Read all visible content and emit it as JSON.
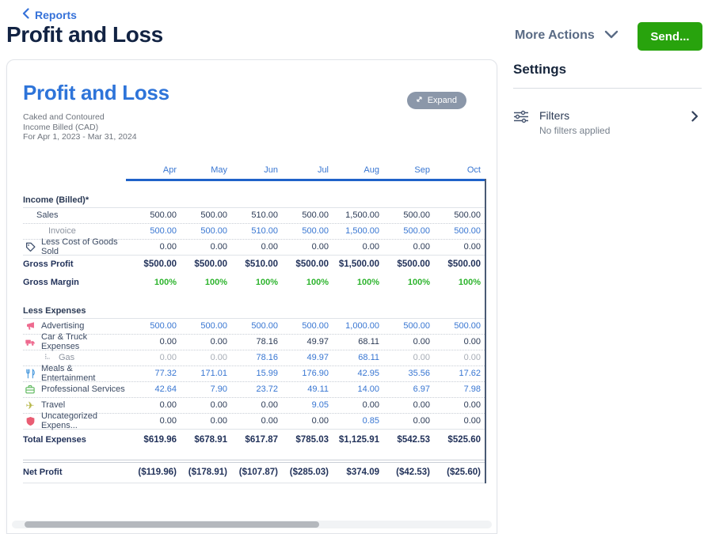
{
  "colors": {
    "brand_blue": "#2e74d9",
    "link_blue": "#3876d2",
    "send_green": "#28a30d",
    "success_green": "#2eb42e",
    "navy_text": "#122343"
  },
  "header": {
    "breadcrumb": "Reports",
    "title": "Profit and Loss",
    "more_actions_label": "More Actions",
    "send_label": "Send..."
  },
  "report_card": {
    "title": "Profit and Loss",
    "company": "Caked and Contoured",
    "basis": "Income Billed (CAD)",
    "period": "For Apr 1, 2023 - Mar 31, 2024",
    "expand_label": "Expand"
  },
  "settings_panel": {
    "title": "Settings",
    "filters_label": "Filters",
    "filters_status": "No filters applied"
  },
  "table": {
    "months": [
      "Apr",
      "May",
      "Jun",
      "Jul",
      "Aug",
      "Sep",
      "Oct"
    ],
    "rows": [
      {
        "kind": "section",
        "label": "Income (Billed)*",
        "border": "solid"
      },
      {
        "kind": "item",
        "label": "Sales",
        "indent": 1,
        "values": [
          "500.00",
          "500.00",
          "510.00",
          "500.00",
          "1,500.00",
          "500.00",
          "500.00"
        ],
        "styles": "d",
        "border": "dotted"
      },
      {
        "kind": "item",
        "label": "Invoice",
        "indent": 2,
        "label_style": "muted",
        "values": [
          "500.00",
          "500.00",
          "510.00",
          "500.00",
          "1,500.00",
          "500.00",
          "500.00"
        ],
        "styles": "b",
        "border": "dotted"
      },
      {
        "kind": "item",
        "label": "Less Cost of Goods Sold",
        "icon": "tags-icon",
        "icon_color": "#3c4d6b",
        "values": [
          "0.00",
          "0.00",
          "0.00",
          "0.00",
          "0.00",
          "0.00",
          "0.00"
        ],
        "styles": "d",
        "border": "solid"
      },
      {
        "kind": "total",
        "label": "Gross Profit",
        "values": [
          "$500.00",
          "$500.00",
          "$510.00",
          "$500.00",
          "$1,500.00",
          "$500.00",
          "$500.00"
        ],
        "styles": "t",
        "border": "none"
      },
      {
        "kind": "total",
        "label": "Gross Margin",
        "values": [
          "100%",
          "100%",
          "100%",
          "100%",
          "100%",
          "100%",
          "100%"
        ],
        "styles": "G",
        "border": "none"
      },
      {
        "kind": "section",
        "label": "Less Expenses",
        "border": "solid"
      },
      {
        "kind": "item",
        "label": "Advertising",
        "icon": "megaphone-icon",
        "icon_color": "#ee6a8f",
        "values": [
          "500.00",
          "500.00",
          "500.00",
          "500.00",
          "1,000.00",
          "500.00",
          "500.00"
        ],
        "styles": "b",
        "border": "dotted"
      },
      {
        "kind": "item",
        "label": "Car & Truck Expenses",
        "icon": "truck-icon",
        "icon_color": "#ee6a8f",
        "values": [
          "0.00",
          "0.00",
          "78.16",
          "49.97",
          "68.11",
          "0.00",
          "0.00"
        ],
        "styles": "d",
        "border": "dotted"
      },
      {
        "kind": "item",
        "label": "Gas",
        "icon": "subcategory-icon",
        "icon_color": "#9aa1ab",
        "indent": 2,
        "label_style": "muted",
        "values": [
          "0.00",
          "0.00",
          "78.16",
          "49.97",
          "68.11",
          "0.00",
          "0.00"
        ],
        "styles": [
          "g",
          "g",
          "b",
          "b",
          "b",
          "g",
          "g"
        ],
        "border": "dotted"
      },
      {
        "kind": "item",
        "label": "Meals & Entertainment",
        "icon": "utensils-icon",
        "icon_color": "#4a9add",
        "values": [
          "77.32",
          "171.01",
          "15.99",
          "176.90",
          "42.95",
          "35.56",
          "17.62"
        ],
        "styles": "b",
        "border": "dotted"
      },
      {
        "kind": "item",
        "label": "Professional Services",
        "icon": "briefcase-icon",
        "icon_color": "#5cb85c",
        "values": [
          "42.64",
          "7.90",
          "23.72",
          "49.11",
          "14.00",
          "6.97",
          "7.98"
        ],
        "styles": "b",
        "border": "dotted"
      },
      {
        "kind": "item",
        "label": "Travel",
        "icon": "airplane-icon",
        "icon_color": "#b5b544",
        "values": [
          "0.00",
          "0.00",
          "0.00",
          "9.05",
          "0.00",
          "0.00",
          "0.00"
        ],
        "styles": [
          "d",
          "d",
          "d",
          "b",
          "d",
          "d",
          "d"
        ],
        "border": "dotted"
      },
      {
        "kind": "item",
        "label": "Uncategorized Expens...",
        "icon": "shield-icon",
        "icon_color": "#e95d73",
        "values": [
          "0.00",
          "0.00",
          "0.00",
          "0.00",
          "0.85",
          "0.00",
          "0.00"
        ],
        "styles": [
          "d",
          "d",
          "d",
          "d",
          "b",
          "d",
          "d"
        ],
        "border": "solid"
      },
      {
        "kind": "grand",
        "label": "Total Expenses",
        "values": [
          "$619.96",
          "$678.91",
          "$617.87",
          "$785.03",
          "$1,125.91",
          "$542.53",
          "$525.60"
        ],
        "styles": "t",
        "border": "none"
      },
      {
        "kind": "double-rule"
      },
      {
        "kind": "grand",
        "label": "Net Profit",
        "values": [
          "($119.96)",
          "($178.91)",
          "($107.87)",
          "($285.03)",
          "$374.09",
          "($42.53)",
          "($25.60)"
        ],
        "styles": "t",
        "border": "solid"
      }
    ]
  }
}
